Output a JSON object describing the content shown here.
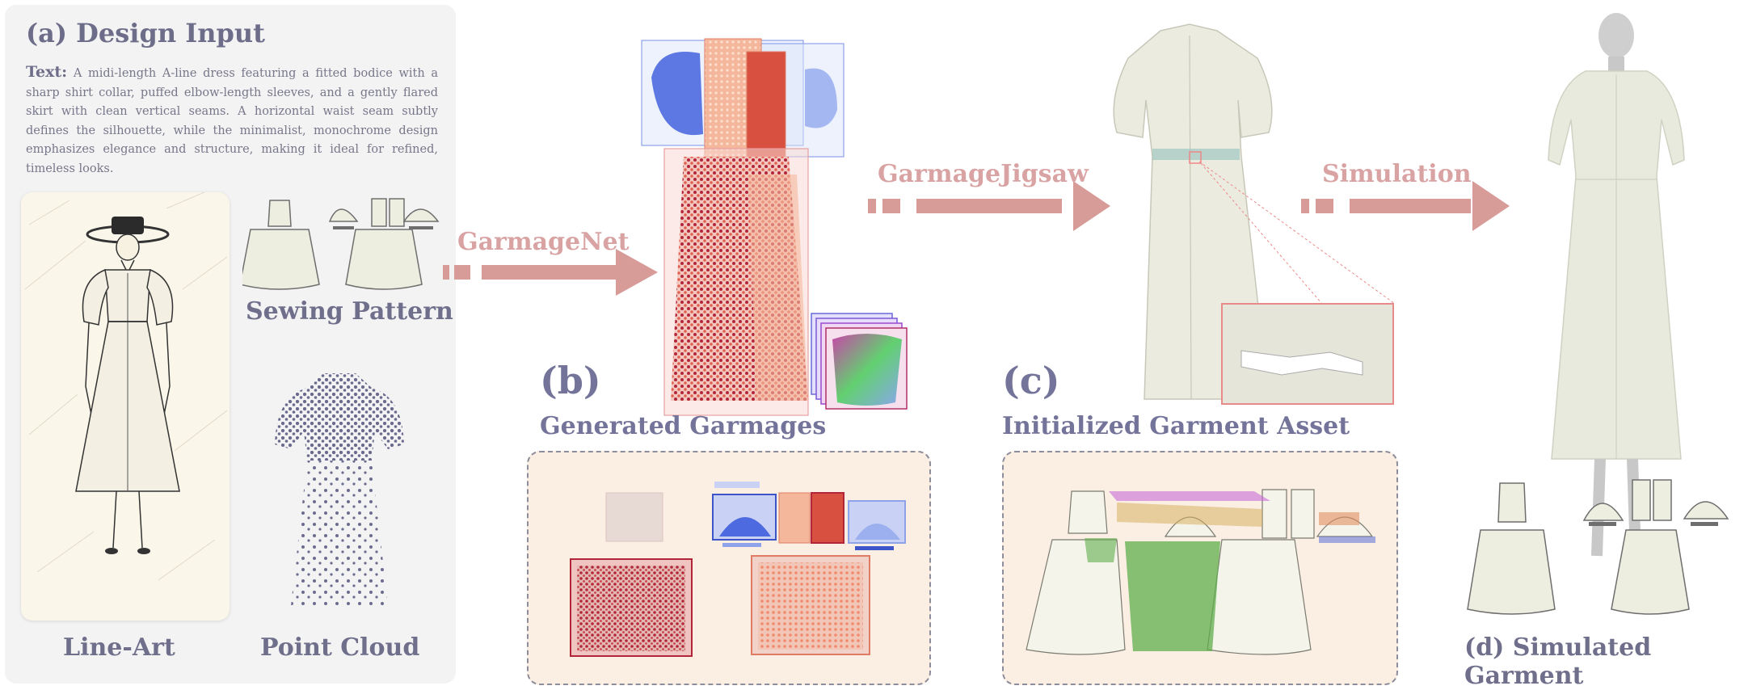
{
  "panel_a": {
    "title": "(a) Design Input",
    "text_label": "Text:",
    "text_body": "A midi-length A-line dress featuring a fitted bodice with a sharp shirt collar, puffed elbow-length sleeves, and a gently flared skirt with clean vertical seams. A horizontal waist seam subtly defines the silhouette, while the minimalist, monochrome design emphasizes elegance and structure, making it ideal for refined, timeless looks.",
    "sewing_pattern": "Sewing Pattern",
    "line_art": "Line-Art",
    "point_cloud": "Point Cloud"
  },
  "arrows": {
    "garmagenet": "GarmageNet",
    "garmagejigsaw": "GarmageJigsaw",
    "simulation": "Simulation"
  },
  "panel_b": {
    "letter": "(b)",
    "title": "Generated Garmages"
  },
  "panel_c": {
    "letter": "(c)",
    "title": "Initialized Garment Asset"
  },
  "panel_d": {
    "title": "(d) Simulated Garment"
  },
  "colors": {
    "arrow": "#d79b98",
    "panel_bg": "#f3f3f4",
    "dashed_bg": "#fbefe4",
    "red_points": "#b3263a",
    "salmon_points": "#ee9a7e",
    "blue_points": "#4d6ae0",
    "purple_points": "#6b6b8f",
    "garment_cream": "#eeeee0"
  }
}
